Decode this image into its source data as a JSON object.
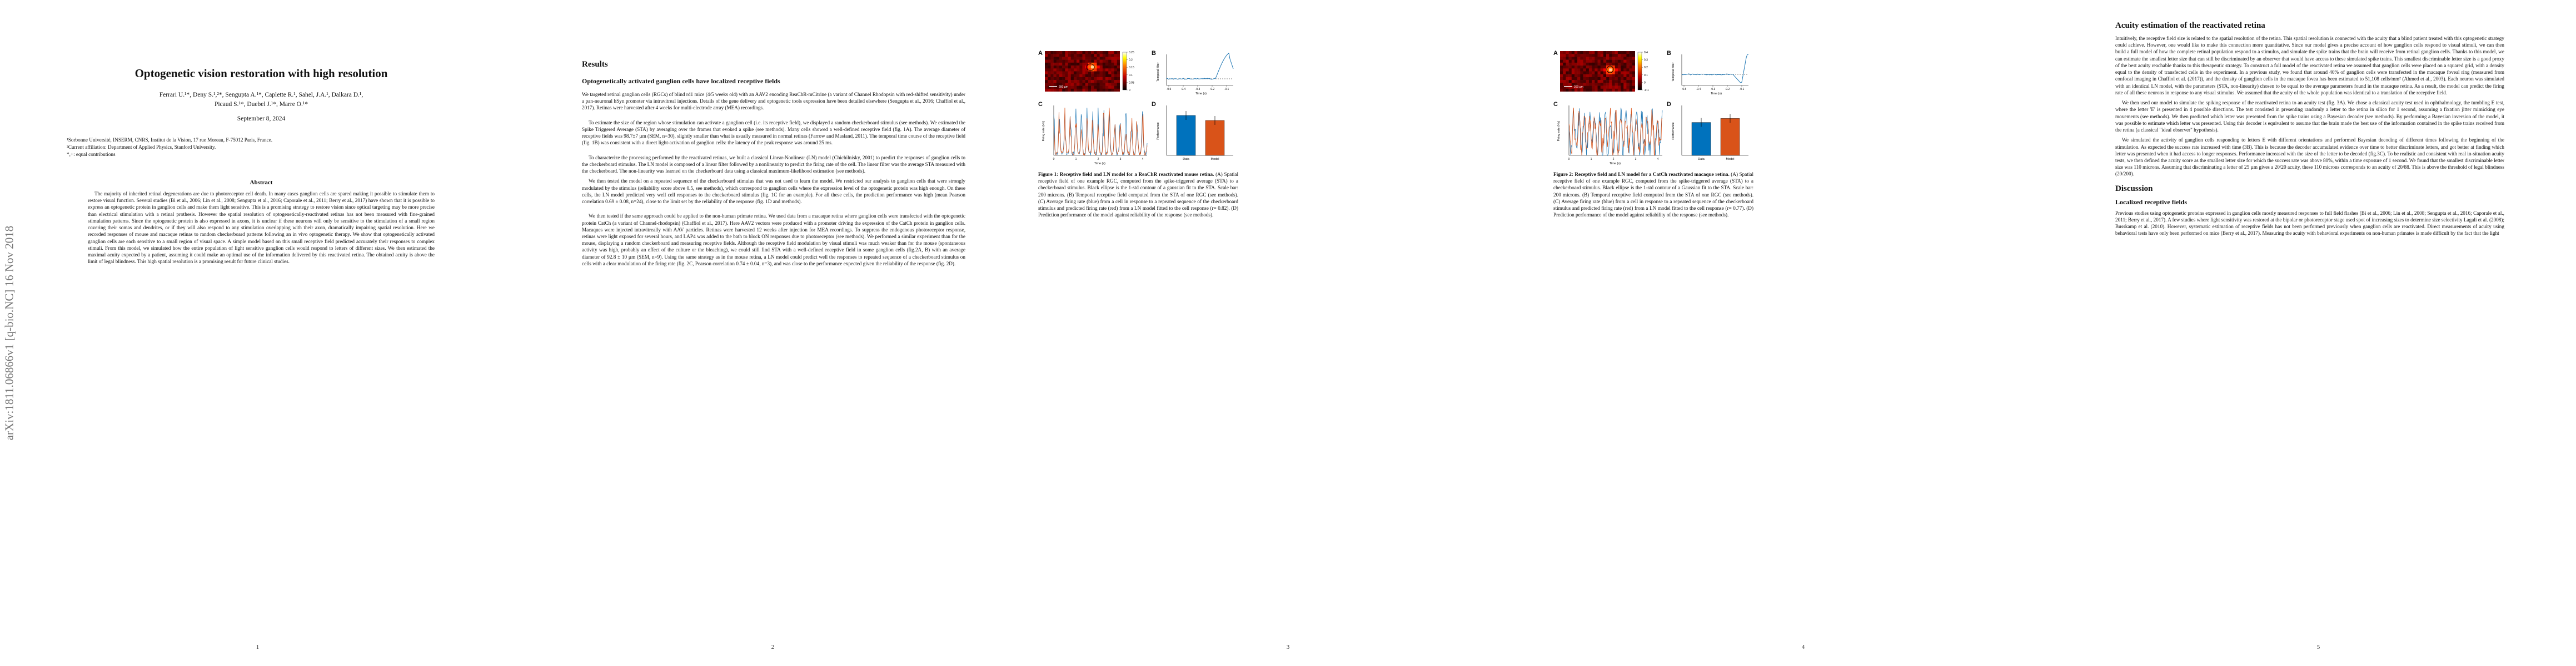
{
  "page1": {
    "arxiv_stamp": "arXiv:1811.06866v1  [q-bio.NC]  16 Nov 2018",
    "title": "Optogenetic vision restoration with high resolution",
    "authors_line1": "Ferrari U.¹*, Deny S.¹,²*, Sengupta A.¹*, Caplette R.¹, Sahel, J.A.¹, Dalkara D.¹,",
    "authors_line2": "Picaud S.¹*, Duebel J.¹*, Marre O.¹*",
    "date": "September 8, 2024",
    "affil1": "¹Sorbonne Université, INSERM, CNRS, Institut de la Vision, 17 rue Moreau, F-75012 Paris, France.",
    "affil2": "²Current affiliation: Department of Applied Physics, Stanford University.",
    "affil3": "*,+: equal contributions",
    "abstract_heading": "Abstract",
    "abstract": "The majority of inherited retinal degenerations are due to photoreceptor cell death. In many cases ganglion cells are spared making it possible to stimulate them to restore visual function. Several studies (Bi et al., 2006; Lin et al., 2008; Sengupta et al., 2016; Caporale et al., 2011; Berry et al., 2017) have shown that it is possible to express an optogenetic protein in ganglion cells and make them light sensitive. This is a promising strategy to restore vision since optical targeting may be more precise than electrical stimulation with a retinal prothesis. However the spatial resolution of optogenetically-reactivated retinas has not been measured with fine-grained stimulation patterns. Since the optogenetic protein is also expressed in axons, it is unclear if these neurons will only be sensitive to the stimulation of a small region covering their somas and dendrites, or if they will also respond to any stimulation overlapping with their axon, dramatically impairing spatial resolution. Here we recorded responses of mouse and macaque retinas to random checkerboard patterns following an in vivo optogenetic therapy. We show that optogenetically activated ganglion cells are each sensitive to a small region of visual space. A simple model based on this small receptive field predicted accurately their responses to complex stimuli. From this model, we simulated how the entire population of light sensitive ganglion cells would respond to letters of different sizes. We then estimated the maximal acuity expected by a patient, assuming it could make an optimal use of the information delivered by this reactivated retina. The obtained acuity is above the limit of legal blindness. This high spatial resolution is a promising result for future clinical studies.",
    "page_number": "1"
  },
  "page2": {
    "section": "Results",
    "subsection": "Optogenetically activated ganglion cells have localized receptive fields",
    "paragraphs": [
      "We targeted retinal ganglion cells (RGCs) of blind rd1 mice (4/5 weeks old) with an AAV2 encoding ReaChR-mCitrine (a variant of Channel Rhodopsin with red-shifted sensitivity) under a pan-neuronal hSyn promoter via intravitreal injections. Details of the gene delivery and optogenetic tools expression have been detailed elsewhere (Sengupta et al., 2016; Chaffiol et al., 2017). Retinas were harvested after 4 weeks for multi-electrode array (MEA) recordings.",
      "To estimate the size of the region whose stimulation can activate a ganglion cell (i.e. its receptive field), we displayed a random checkerboard stimulus (see methods). We estimated the Spike Triggered Average (STA) by averaging over the frames that evoked a spike (see methods). Many cells showed a well-defined receptive field (fig. 1A). The average diameter of receptive fields was 98.7±7 µm (SEM, n=30), slightly smaller than what is usually measured in normal retinas (Farrow and Masland, 2011). The temporal time course of the receptive field (fig. 1B) was consistent with a direct light-activation of ganglion cells: the latency of the peak response was around 25 ms.",
      "To characterize the processing performed by the reactivated retinas, we built a classical Linear-Nonlinear (LN) model (Chichilnisky, 2001) to predict the responses of ganglion cells to the checkerboard stimulus. The LN model is composed of a linear filter followed by a nonlinearity to predict the firing rate of the cell. The linear filter was the average STA measured with the checkerboard. The non-linearity was learned on the checkerboard data using a classical maximum-likelihood estimation (see methods).",
      "We then tested the model on a repeated sequence of the checkerboard stimulus that was not used to learn the model. We restricted our analysis to ganglion cells that were strongly modulated by the stimulus (reliability score above 0.5, see methods), which correspond to ganglion cells where the expression level of the optogenetic protein was high enough. On these cells, the LN model predicted very well cell responses to the checkerboard stimulus (fig. 1C for an example). For all these cells, the prediction performance was high (mean Pearson correlation 0.69 ± 0.08, n=24), close to the limit set by the reliability of the response (fig. 1D and methods).",
      "We then tested if the same approach could be applied to the non-human primate retina. We used data from a macaque retina where ganglion cells were transfected with the optogenetic protein CatCh (a variant of Channel-rhodopsin) (Chaffiol et al., 2017). Here AAV2 vectors were produced with a promoter driving the expression of the CatCh protein in ganglion cells. Macaques were injected intravitreally with AAV particles. Retinas were harvested 12 weeks after injection for MEA recordings. To suppress the endogenous photoreceptor response, retinas were light exposed for several hours, and LAP4 was added to the bath to block ON responses due to photoreceptor (see methods). We performed a similar experiment than for the mouse, displaying a random checkerboard and measuring receptive fields. Although the receptive field modulation by visual stimuli was much weaker than for the mouse (spontaneous activity was high, probably an effect of the culture or the bleaching), we could still find STA with a well-defined receptive field in some ganglion cells (fig.2A, B) with an average diameter of 92.8 ± 10 µm (SEM, n=9). Using the same strategy as in the mouse retina, a LN model could predict well the responses to repeated sequence of a checkerboard stimulus on cells with a clear modulation of the firing rate (fig. 2C, Pearson correlation 0.74 ± 0.04, n=3), and was close to the performance expected given the reliability of the response (fig. 2D)."
    ],
    "page_number": "2"
  },
  "page3": {
    "panel_labels": [
      "A",
      "B",
      "C",
      "D"
    ],
    "scale_bar": "200 µm",
    "colorbar_ticks": [
      "0.25",
      "0.2",
      "0.15",
      "0.1",
      "0.05",
      "0"
    ],
    "panelB": {
      "ylabel": "Temporal filter",
      "xlabel": "Time (s)"
    },
    "panelC": {
      "ylabel": "Firing rate (Hz)",
      "xlabel": "Time (s)"
    },
    "panelD": {
      "ylabel": "Performance"
    },
    "caption_bold": "Figure 1: Receptive field and LN model for a ReaChR reactivated mouse retina.",
    "caption_rest": "(A) Spatial receptive field of one example RGC, computed from the spike-triggered average (STA) to a checkerboard stimulus. Black ellipse is the 1-std contour of a gaussian fit to the STA. Scale bar: 200 microns. (B) Temporal receptive field computed from the STA of one RGC (see methods). (C) Average firing rate (blue) from a cell in response to a repeated sequence of the checkerboard stimulus and predicted firing rate (red) from a LN model fitted to the cell response (r= 0.82). (D) Prediction performance of the model against reliability of the response (see methods).",
    "page_number": "3"
  },
  "page4": {
    "panel_labels": [
      "A",
      "B",
      "C",
      "D"
    ],
    "scale_bar": "200 µm",
    "colorbar_ticks": [
      "0.4",
      "0.3",
      "0.2",
      "0.1",
      "0",
      "-0.1"
    ],
    "panelB": {
      "ylabel": "Temporal filter",
      "xlabel": "Time (s)"
    },
    "panelC": {
      "ylabel": "Firing rate (Hz)",
      "xlabel": "Time (s)"
    },
    "panelD": {
      "ylabel": "Performance"
    },
    "caption_bold": "Figure 2: Receptive field and LN model for a CatCh reactivated macaque retina.",
    "caption_rest": "(A) Spatial receptive field of one example RGC, computed from the spike-triggered average (STA) to a checkerboard stimulus. Black ellipse is the 1-std contour of a Gaussian fit to the STA. Scale bar: 200 microns. (B) Temporal receptive field computed from the STA of one RGC (see methods). (C) Average firing rate (blue) from a cell in response to a repeated sequence of the checkerboard stimulus and predicted firing rate (red) from a LN model fitted to the cell response (r= 0.77). (D) Prediction performance of the model against reliability of the response (see methods).",
    "page_number": "4"
  },
  "page5": {
    "section": "Acuity estimation of the reactivated retina",
    "paragraphs": [
      "Intuitively, the receptive field size is related to the spatial resolution of the retina. This spatial resolution is connected with the acuity that a blind patient treated with this optogenetic strategy could achieve. However, one would like to make this connection more quantitative. Since our model gives a precise account of how ganglion cells respond to visual stimuli, we can then build a full model of how the complete retinal population respond to a stimulus, and simulate the spike trains that the brain will receive from retinal ganglion cells. Thanks to this model, we can estimate the smallest letter size that can still be discriminated by an observer that would have access to these simulated spike trains. This smallest discriminable letter size is a good proxy of the best acuity reachable thanks to this therapeutic strategy. To construct a full model of the reactivated retina we assumed that ganglion cells were placed on a squared grid, with a density equal to the density of transfected cells in the experiment. In a previous study, we found that around 40% of ganglion cells were transfected in the macaque foveal ring (measured from confocal imaging in Chaffiol et al. (2017)), and the density of ganglion cells in the macaque fovea has been estimated to 51,108 cells/mm² (Ahmed et al., 2003). Each neuron was simulated with an identical LN model, with the parameters (STA, non-linearity) chosen to be equal to the average parameters found in the macaque retina. As a result, the model can predict the firing rate of all these neurons in response to any visual stimulus. We assumed that the acuity of the whole population was identical to a translation of the receptive field.",
      "We then used our model to simulate the spiking response of the reactivated retina to an acuity test (fig. 3A). We chose a classical acuity test used in ophthalmology, the tumbling E test, where the letter 'E' is presented in 4 possible directions. The test consisted in presenting randomly a letter to the retina in silico for 1 second, assuming a fixation jitter mimicking eye movements (see methods). We then predicted which letter was presented from the spike trains using a Bayesian decoder (see methods). By performing a Bayesian inversion of the model, it was possible to estimate which letter was presented. Using this decoder is equivalent to assume that the brain made the best use of the information contained in the spike trains received from the retina (a classical \"ideal observer\" hypothesis).",
      "We simulated the activity of ganglion cells responding to letters E with different orientations and performed Bayesian decoding of different times following the beginning of the stimulation. As expected the success rate increased with time (3B). This is because the decoder accumulated evidence over time to better discriminate letters, and got better at finding which letter was presented when it had access to longer responses. Performance increased with the size of the letter to be decoded (fig.3C). To be realistic and consistent with real in-situation acuity tests, we then defined the acuity score as the smallest letter size for which the success rate was above 80%, within a time exposure of 1 second. We found that the smallest discriminable letter size was 110 microns. Assuming that discriminating a letter of 25 µm gives a 20/20 acuity, these 110 microns corresponds to an acuity of 20/88. This is above the threshold of legal blindness (20/200)."
    ],
    "discussion": "Discussion",
    "subsection": "Localized receptive fields",
    "discussion_text": "Previous studies using optogenetic proteins expressed in ganglion cells mostly measured responses to full field flashes (Bi et al., 2006; Lin et al., 2008; Sengupta et al., 2016; Caporale et al., 2011; Berry et al., 2017). A few studies where light sensitivity was restored at the bipolar or photoreceptor stage used spot of increasing sizes to determine size selectivity Lagali et al. (2008); Busskamp et al. (2010). However, systematic estimation of receptive fields has not been performed previously when ganglion cells are reactivated. Direct measurements of acuity using behavioral tests have only been performed on mice (Berry et al., 2017). Measuring the acuity with behavioral experiments on non-human primates is made difficult by the fact that the light",
    "page_number": "5"
  }
}
